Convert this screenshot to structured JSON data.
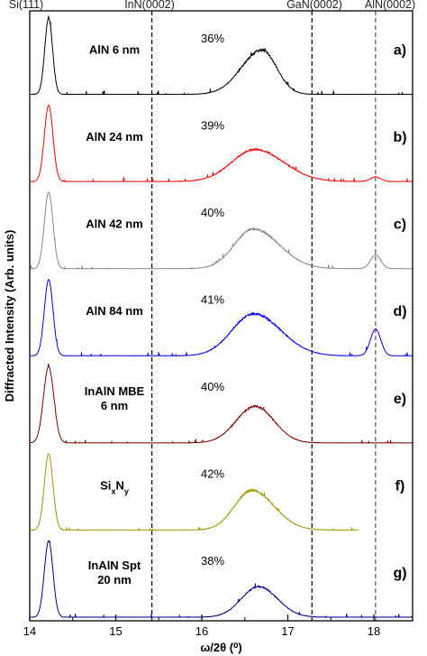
{
  "chart_data": {
    "type": "line",
    "xlabel": "ω/2θ (⁰)",
    "ylabel": "Diffracted Intensity (Arb. units)",
    "xlim": [
      14,
      18.45
    ],
    "x_ticks": [
      "14",
      "15",
      "16",
      "17",
      "18"
    ],
    "reference_lines": [
      {
        "label": "Si(111)",
        "x": 14.22,
        "dashed": false
      },
      {
        "label": "InN(0002)",
        "x": 15.42,
        "dashed": true
      },
      {
        "label": "GaN(0002)",
        "x": 17.28,
        "dashed": true
      },
      {
        "label": "AlN(0002)",
        "x": 18.02,
        "dashed": true
      }
    ],
    "panels": [
      {
        "letter": "a)",
        "label_lines": [
          "AlN 6 nm"
        ],
        "percent": "36%",
        "color": "#000000",
        "si_height": 1.0,
        "si_width": 0.045,
        "peak_x": 16.7,
        "peak_height": 0.58,
        "peak_left_sigma": 0.24,
        "peak_right_sigma": 0.17,
        "aln_height": 0.0,
        "baseline_end": 18.45
      },
      {
        "letter": "b)",
        "label_lines": [
          "AlN 24 nm"
        ],
        "percent": "39%",
        "color": "#ff0000",
        "si_height": 1.0,
        "si_width": 0.05,
        "peak_x": 16.62,
        "peak_height": 0.42,
        "peak_left_sigma": 0.27,
        "peak_right_sigma": 0.33,
        "aln_height": 0.06,
        "baseline_end": 18.45
      },
      {
        "letter": "c)",
        "label_lines": [
          "AlN 42 nm"
        ],
        "percent": "40%",
        "color": "#888888",
        "si_height": 1.0,
        "si_width": 0.05,
        "peak_x": 16.6,
        "peak_height": 0.52,
        "peak_left_sigma": 0.22,
        "peak_right_sigma": 0.3,
        "aln_height": 0.18,
        "baseline_end": 18.45
      },
      {
        "letter": "d)",
        "label_lines": [
          "AlN 84 nm"
        ],
        "percent": "41%",
        "color": "#0000ee",
        "si_height": 1.0,
        "si_width": 0.05,
        "peak_x": 16.6,
        "peak_height": 0.55,
        "peak_left_sigma": 0.25,
        "peak_right_sigma": 0.32,
        "aln_height": 0.35,
        "baseline_end": 18.45
      },
      {
        "letter": "e)",
        "label_lines": [
          "InAlN MBE",
          "6 nm"
        ],
        "percent": "40%",
        "color": "#800000",
        "si_height": 1.0,
        "si_width": 0.06,
        "peak_x": 16.62,
        "peak_height": 0.48,
        "peak_left_sigma": 0.22,
        "peak_right_sigma": 0.22,
        "aln_height": 0.0,
        "baseline_end": 18.45
      },
      {
        "letter": "f)",
        "label_lines": [
          "SixNy"
        ],
        "percent": "42%",
        "color": "#9a9a00",
        "si_height": 1.0,
        "si_width": 0.05,
        "peak_x": 16.58,
        "peak_height": 0.52,
        "peak_left_sigma": 0.2,
        "peak_right_sigma": 0.26,
        "aln_height": 0.0,
        "baseline_end": 17.82
      },
      {
        "letter": "g)",
        "label_lines": [
          "InAlN Spt",
          "20 nm"
        ],
        "percent": "38%",
        "color": "#00008b",
        "si_height": 1.0,
        "si_width": 0.05,
        "peak_x": 16.66,
        "peak_height": 0.4,
        "peak_left_sigma": 0.2,
        "peak_right_sigma": 0.22,
        "aln_height": 0.0,
        "baseline_end": 18.45
      }
    ]
  }
}
